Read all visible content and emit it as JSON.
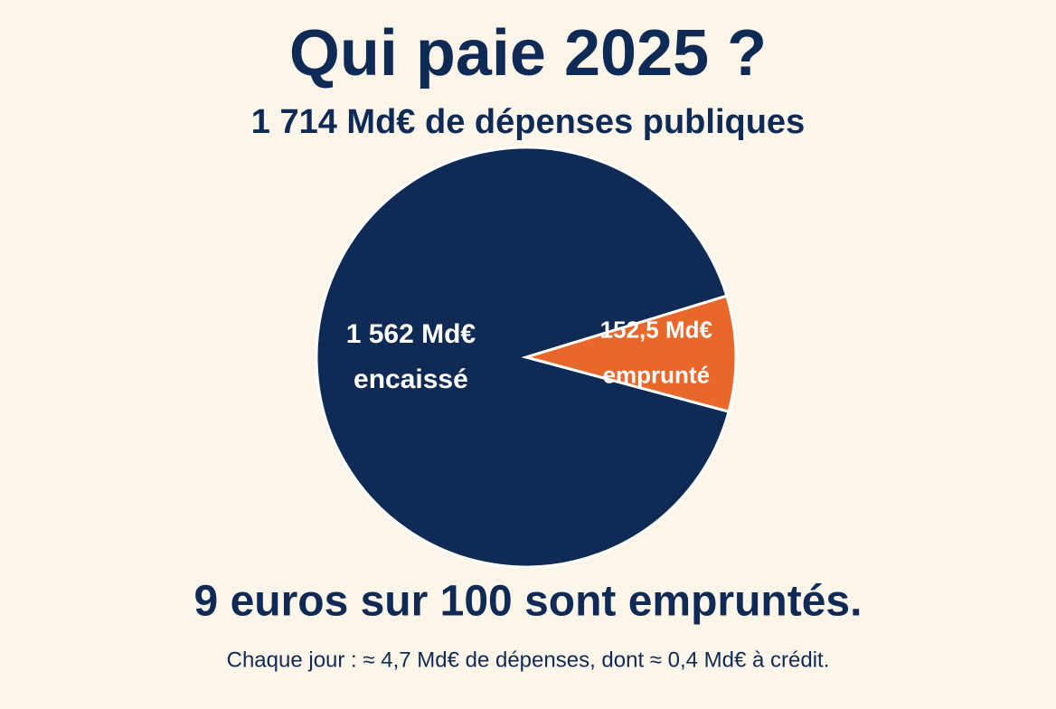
{
  "chart_data": {
    "type": "pie",
    "title": "Qui paie 2025 ?",
    "subtitle": "1 714 Md€ de dépenses publiques",
    "categories": [
      "encaissé",
      "emprunté"
    ],
    "values": [
      1562,
      152.5
    ],
    "value_labels": [
      "1 562 Md€",
      "152,5 Md€"
    ],
    "colors": [
      "#0f2a54",
      "#e8672a"
    ],
    "annotations": [
      "9 euros sur 100 sont empruntés.",
      "Chaque jour : ≈ 4,7 Md€ de dépenses, dont ≈ 0,4 Md€ à crédit."
    ]
  }
}
